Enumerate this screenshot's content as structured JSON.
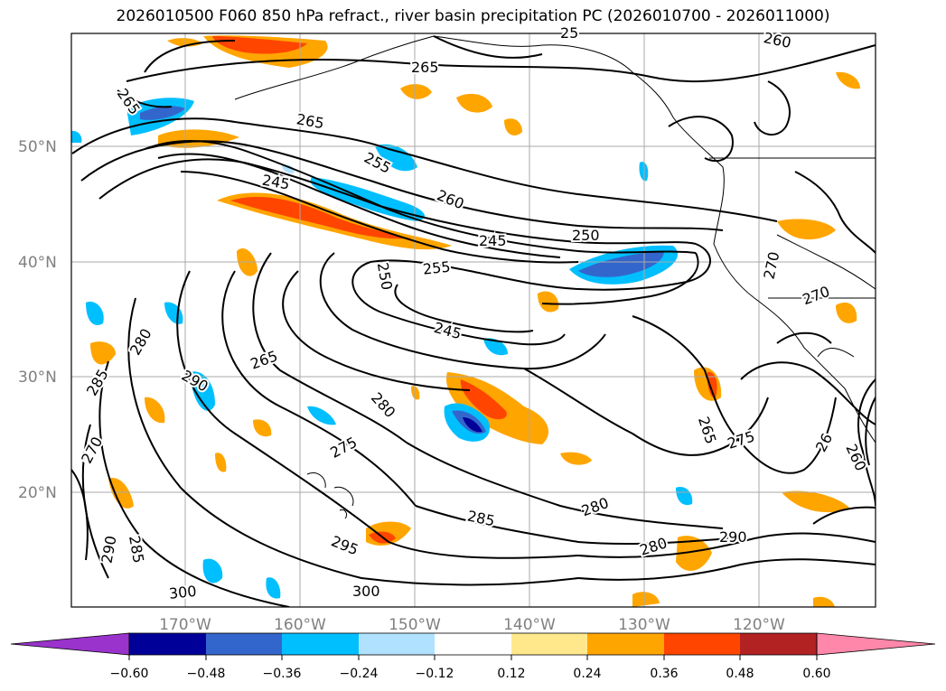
{
  "title": "2026010500 F060 850 hPa refract., river basin precipitation PC (2026010700 - 2026011000)",
  "latitude_labels": [
    "50°N",
    "40°N",
    "30°N",
    "20°N"
  ],
  "longitude_labels": [
    "170°W",
    "160°W",
    "150°W",
    "140°W",
    "130°W",
    "120°W"
  ],
  "contour_labels": [
    {
      "text": "265"
    },
    {
      "text": "265"
    },
    {
      "text": "265"
    },
    {
      "text": "260"
    },
    {
      "text": "25"
    },
    {
      "text": "255"
    },
    {
      "text": "245"
    },
    {
      "text": "260"
    },
    {
      "text": "245"
    },
    {
      "text": "250"
    },
    {
      "text": "255"
    },
    {
      "text": "250"
    },
    {
      "text": "245"
    },
    {
      "text": "265"
    },
    {
      "text": "290"
    },
    {
      "text": "280"
    },
    {
      "text": "280"
    },
    {
      "text": "275"
    },
    {
      "text": "285"
    },
    {
      "text": "270"
    },
    {
      "text": "285"
    },
    {
      "text": "290"
    },
    {
      "text": "295"
    },
    {
      "text": "300"
    },
    {
      "text": "300"
    },
    {
      "text": "285"
    },
    {
      "text": "280"
    },
    {
      "text": "280"
    },
    {
      "text": "290"
    },
    {
      "text": "265"
    },
    {
      "text": "275"
    },
    {
      "text": "270"
    },
    {
      "text": "270"
    },
    {
      "text": "26"
    },
    {
      "text": "260"
    }
  ],
  "colorbar": {
    "ticks": [
      "−0.60",
      "−0.48",
      "−0.36",
      "−0.24",
      "−0.12",
      "0.12",
      "0.24",
      "0.36",
      "0.48",
      "0.60"
    ],
    "colors": [
      "#9933cc",
      "#000099",
      "#3366cc",
      "#00bfff",
      "#b0e2ff",
      "#ffffff",
      "#ffe88c",
      "#ffa500",
      "#ff4500",
      "#b22222",
      "#ff88aa"
    ]
  }
}
